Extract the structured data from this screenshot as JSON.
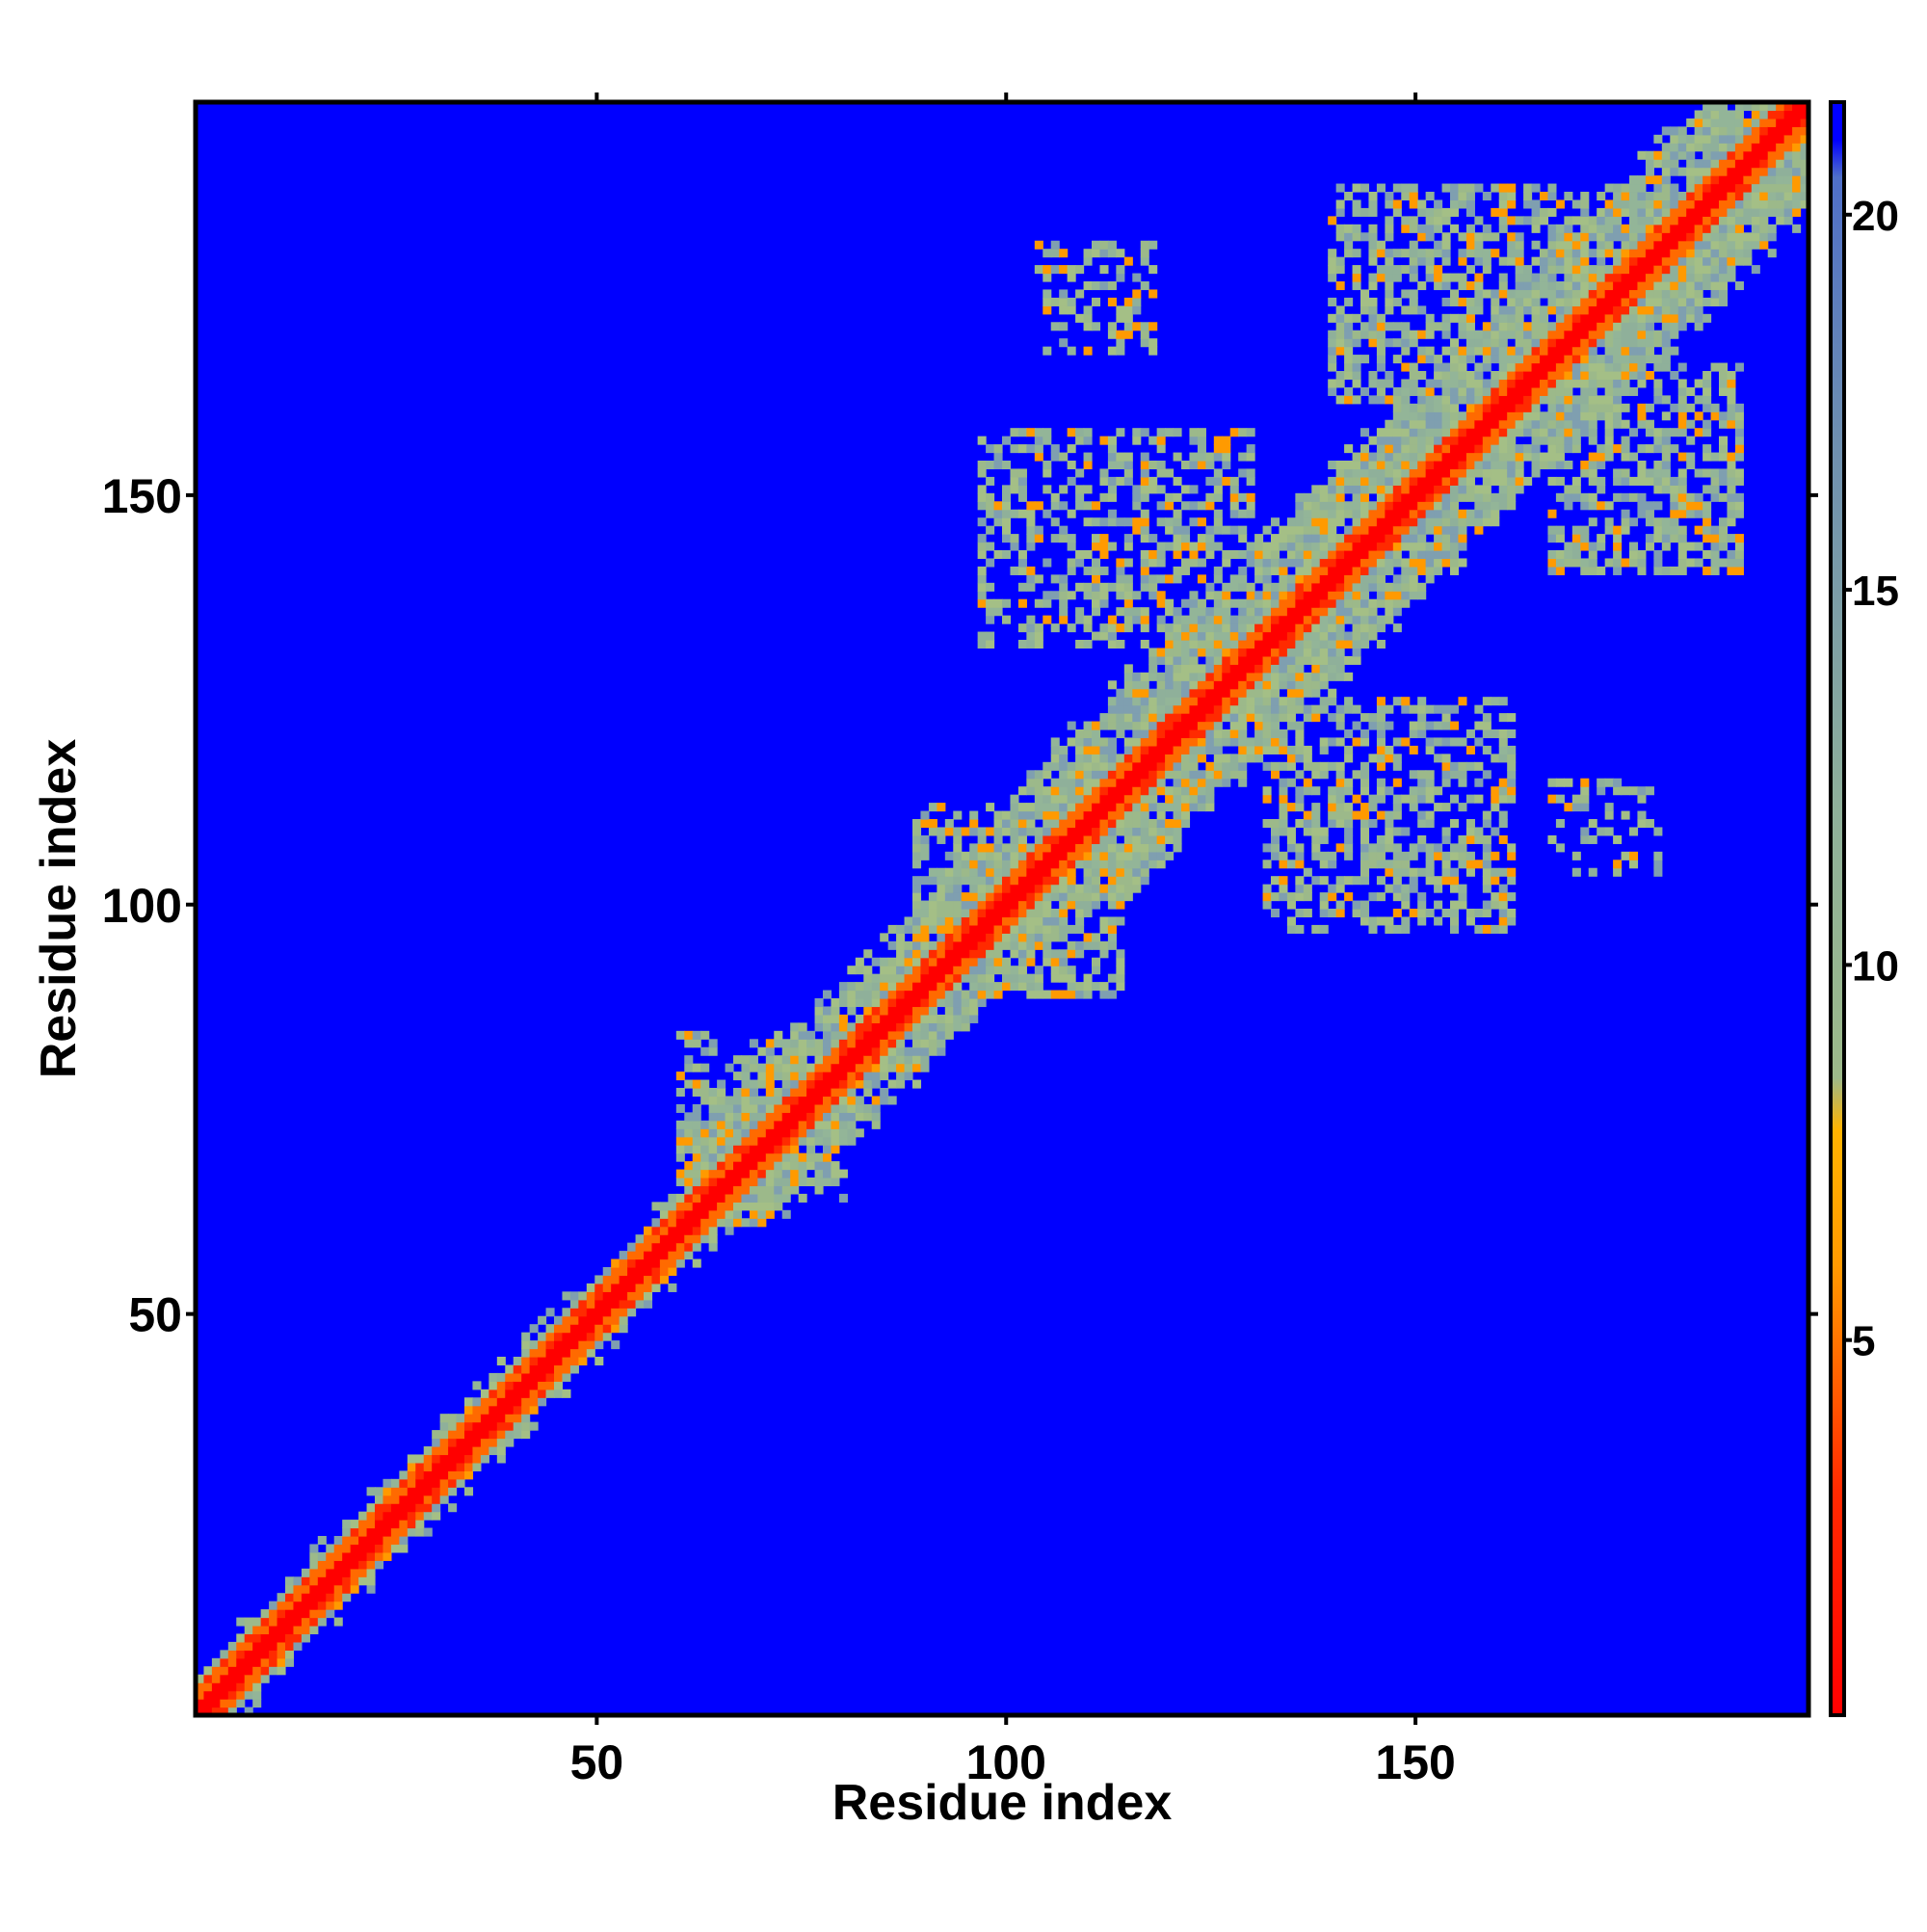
{
  "chart_data": {
    "type": "heatmap",
    "title": "",
    "xlabel": "Residue index",
    "ylabel": "Residue index",
    "x_ticks": [
      50,
      100,
      150
    ],
    "y_ticks": [
      50,
      100,
      150
    ],
    "xlim": [
      1,
      198
    ],
    "ylim": [
      1,
      198
    ],
    "grid": false,
    "legend": "colorbar right",
    "colorbar": {
      "ticks": [
        5,
        10,
        15,
        20
      ],
      "range": [
        0,
        21.5
      ],
      "stops": [
        {
          "value": 0,
          "color": "#ff0000"
        },
        {
          "value": 3,
          "color": "#ff2a00"
        },
        {
          "value": 6,
          "color": "#ff9a00"
        },
        {
          "value": 7.8,
          "color": "#ffb300"
        },
        {
          "value": 8.5,
          "color": "#9cb98a"
        },
        {
          "value": 12,
          "color": "#8fb09a"
        },
        {
          "value": 17,
          "color": "#6e8fb0"
        },
        {
          "value": 20.5,
          "color": "#4f6fc8"
        },
        {
          "value": 21,
          "color": "#0000ff"
        }
      ]
    },
    "background_color": "#0000ff",
    "diagonal_band": {
      "core_halfwidth": 1.5,
      "orange_halfwidth": 3.0,
      "segments": [
        {
          "from": 1,
          "to": 60,
          "halfwidth": 4
        },
        {
          "from": 60,
          "to": 100,
          "halfwidth": 9
        },
        {
          "from": 100,
          "to": 198,
          "halfwidth": 12
        }
      ]
    },
    "contact_blobs": [
      {
        "x_range": [
          140,
          175
        ],
        "y_range": [
          162,
          188
        ],
        "density": 0.55
      },
      {
        "x_range": [
          167,
          190
        ],
        "y_range": [
          141,
          166
        ],
        "density": 0.55
      },
      {
        "x_range": [
          97,
          130
        ],
        "y_range": [
          132,
          158
        ],
        "density": 0.5
      },
      {
        "x_range": [
          132,
          162
        ],
        "y_range": [
          97,
          125
        ],
        "density": 0.5
      },
      {
        "x_range": [
          104,
          118
        ],
        "y_range": [
          168,
          181
        ],
        "density": 0.3
      },
      {
        "x_range": [
          167,
          180
        ],
        "y_range": [
          104,
          115
        ],
        "density": 0.3
      },
      {
        "x_range": [
          89,
          114
        ],
        "y_range": [
          96,
          112
        ],
        "density": 0.55
      },
      {
        "x_range": [
          96,
          114
        ],
        "y_range": [
          89,
          104
        ],
        "density": 0.55
      },
      {
        "x_range": [
          60,
          80
        ],
        "y_range": [
          64,
          84
        ],
        "density": 0.45
      }
    ]
  }
}
